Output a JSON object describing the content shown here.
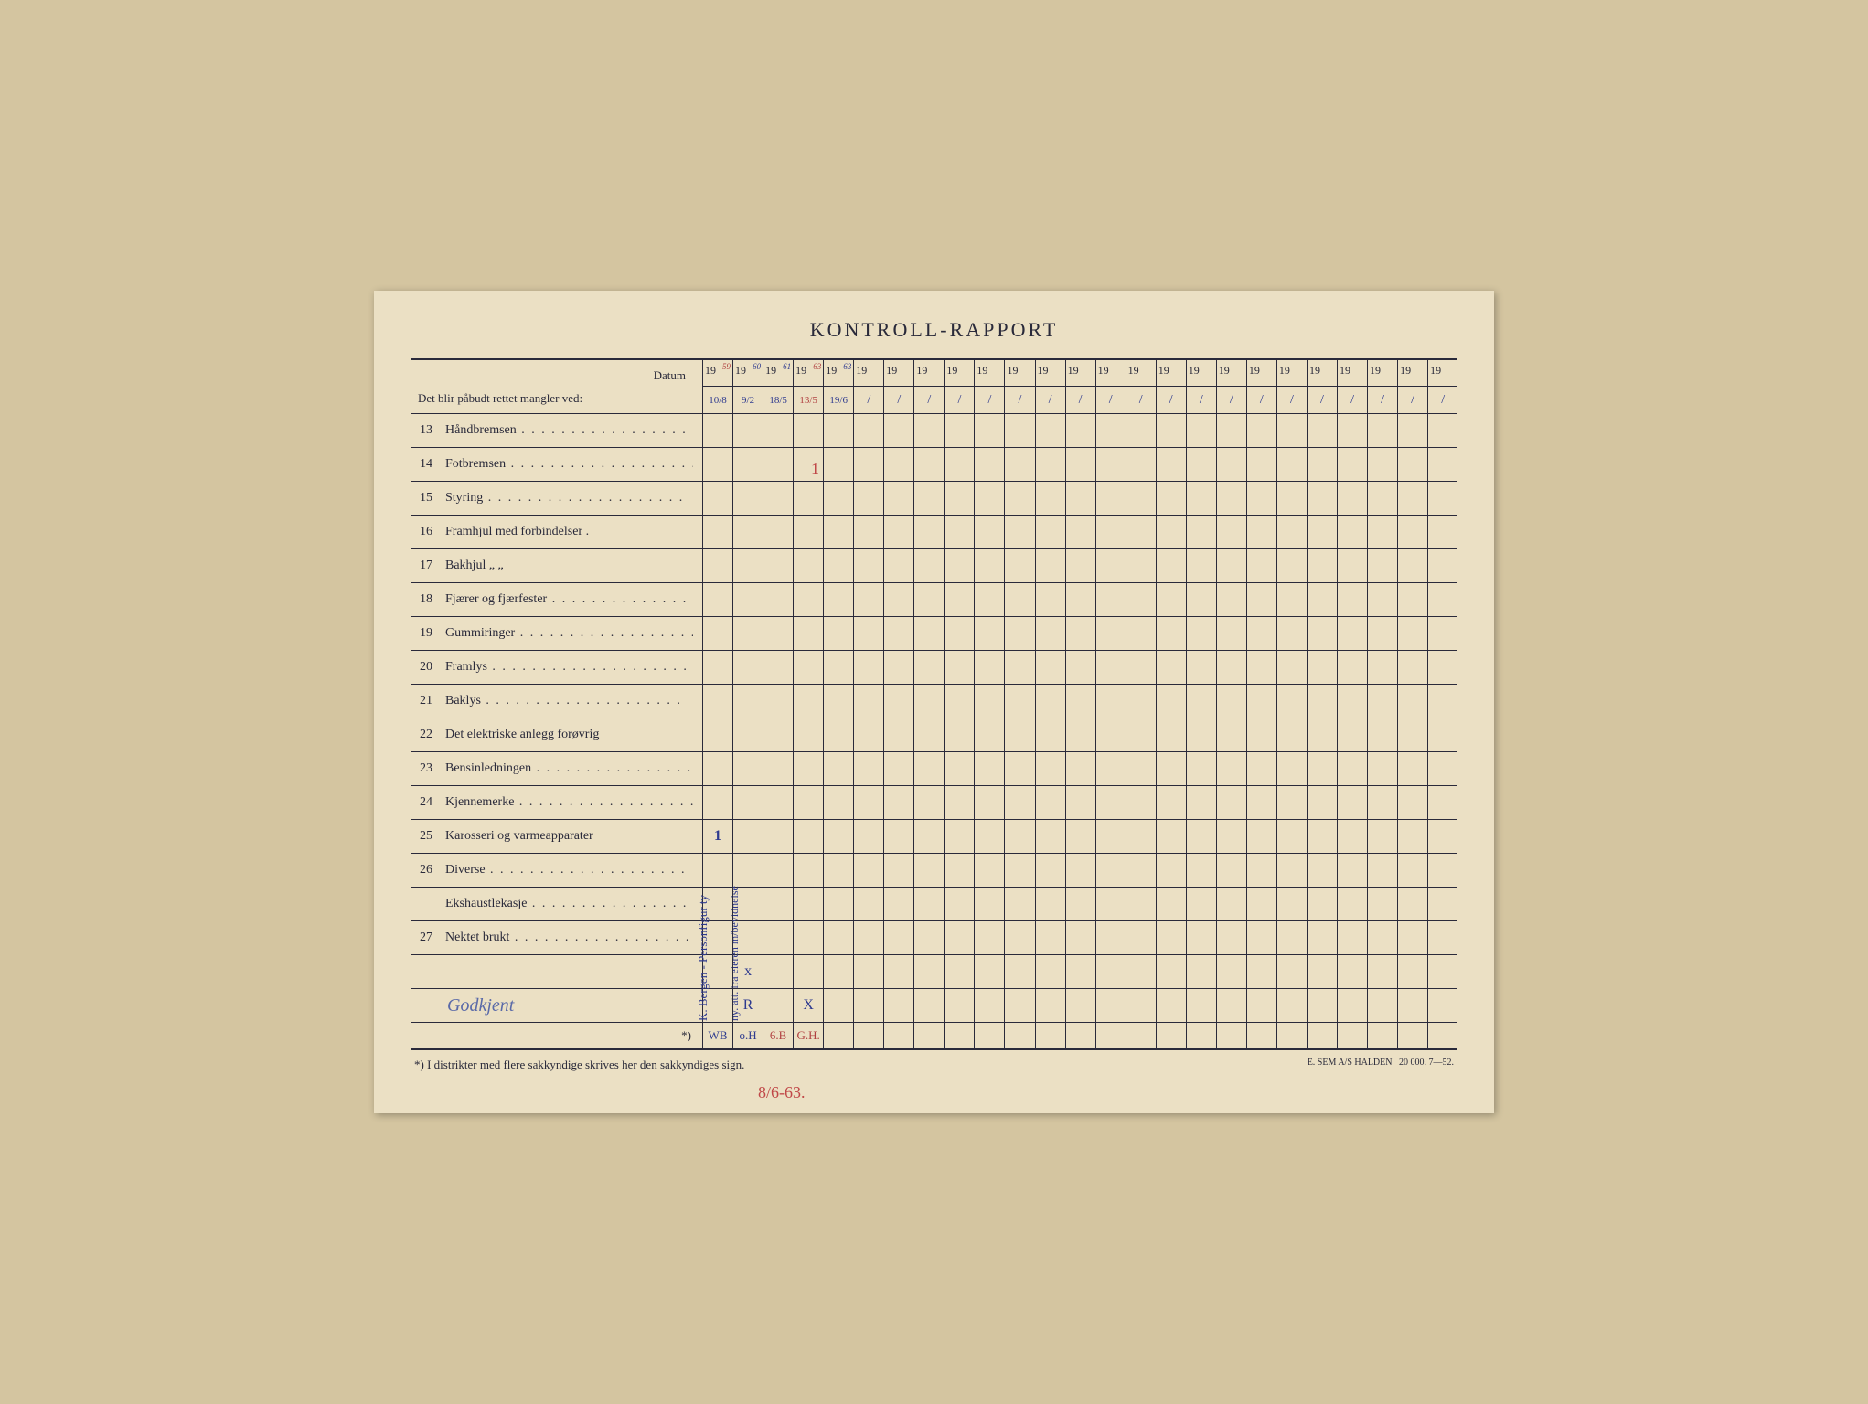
{
  "title": "KONTROLL-RAPPORT",
  "header": {
    "datum_label": "Datum",
    "subtitle": "Det blir påbudt rettet mangler ved:"
  },
  "year_columns": [
    {
      "prefix": "19",
      "suffix_hand": "59",
      "suffix_color": "red",
      "bottom": "10/8",
      "bottom_color": "blue"
    },
    {
      "prefix": "19",
      "suffix_hand": "60",
      "suffix_color": "blue",
      "bottom": "9/2",
      "bottom_color": "blue"
    },
    {
      "prefix": "19",
      "suffix_hand": "61",
      "suffix_color": "blue",
      "bottom": "18/5",
      "bottom_color": "blue"
    },
    {
      "prefix": "19",
      "suffix_hand": "63",
      "suffix_color": "red",
      "bottom": "13/5",
      "bottom_color": "red"
    },
    {
      "prefix": "19",
      "suffix_hand": "63",
      "suffix_color": "blue",
      "bottom": "19/6",
      "bottom_color": "blue"
    },
    {
      "prefix": "19",
      "suffix_hand": "",
      "bottom": "/",
      "bottom_color": "blue"
    },
    {
      "prefix": "19",
      "suffix_hand": "",
      "bottom": "/",
      "bottom_color": "blue"
    },
    {
      "prefix": "19",
      "suffix_hand": "",
      "bottom": "/",
      "bottom_color": "blue"
    },
    {
      "prefix": "19",
      "suffix_hand": "",
      "bottom": "/",
      "bottom_color": "blue"
    },
    {
      "prefix": "19",
      "suffix_hand": "",
      "bottom": "/",
      "bottom_color": "blue"
    },
    {
      "prefix": "19",
      "suffix_hand": "",
      "bottom": "/",
      "bottom_color": "blue"
    },
    {
      "prefix": "19",
      "suffix_hand": "",
      "bottom": "/",
      "bottom_color": "blue"
    },
    {
      "prefix": "19",
      "suffix_hand": "",
      "bottom": "/",
      "bottom_color": "blue"
    },
    {
      "prefix": "19",
      "suffix_hand": "",
      "bottom": "/",
      "bottom_color": "blue"
    },
    {
      "prefix": "19",
      "suffix_hand": "",
      "bottom": "/",
      "bottom_color": "blue"
    },
    {
      "prefix": "19",
      "suffix_hand": "",
      "bottom": "/",
      "bottom_color": "blue"
    },
    {
      "prefix": "19",
      "suffix_hand": "",
      "bottom": "/",
      "bottom_color": "blue"
    },
    {
      "prefix": "19",
      "suffix_hand": "",
      "bottom": "/",
      "bottom_color": "blue"
    },
    {
      "prefix": "19",
      "suffix_hand": "",
      "bottom": "/",
      "bottom_color": "blue"
    },
    {
      "prefix": "19",
      "suffix_hand": "",
      "bottom": "/",
      "bottom_color": "blue"
    },
    {
      "prefix": "19",
      "suffix_hand": "",
      "bottom": "/",
      "bottom_color": "blue"
    },
    {
      "prefix": "19",
      "suffix_hand": "",
      "bottom": "/",
      "bottom_color": "blue"
    },
    {
      "prefix": "19",
      "suffix_hand": "",
      "bottom": "/",
      "bottom_color": "blue"
    },
    {
      "prefix": "19",
      "suffix_hand": "",
      "bottom": "/",
      "bottom_color": "blue"
    },
    {
      "prefix": "19",
      "suffix_hand": "",
      "bottom": "/",
      "bottom_color": "blue"
    }
  ],
  "items": [
    {
      "num": "13",
      "label": "Håndbremsen",
      "dots": true
    },
    {
      "num": "14",
      "label": "Fotbremsen",
      "dots": true
    },
    {
      "num": "15",
      "label": "Styring",
      "dots": true
    },
    {
      "num": "16",
      "label": "Framhjul med forbindelser .",
      "dots": false
    },
    {
      "num": "17",
      "label": "Bakhjul        „            „",
      "dots": false
    },
    {
      "num": "18",
      "label": "Fjærer og fjærfester",
      "dots": true
    },
    {
      "num": "19",
      "label": "Gummiringer",
      "dots": true
    },
    {
      "num": "20",
      "label": "Framlys",
      "dots": true
    },
    {
      "num": "21",
      "label": "Baklys",
      "dots": true
    },
    {
      "num": "22",
      "label": "Det elektriske anlegg forøvrig",
      "dots": false
    },
    {
      "num": "23",
      "label": "Bensinledningen",
      "dots": true
    },
    {
      "num": "24",
      "label": "Kjennemerke",
      "dots": true
    },
    {
      "num": "25",
      "label": "Karosseri og varmeapparater",
      "dots": false
    },
    {
      "num": "26",
      "label": "Diverse",
      "dots": true
    },
    {
      "num": "",
      "label": "Ekshaustlekasje",
      "dots": true
    },
    {
      "num": "27",
      "label": "Nektet brukt",
      "dots": true
    }
  ],
  "signature_text": "Godkjent",
  "asterisk_label": "*)",
  "footnote": "*)  I distrikter med flere sakkyndige skrives her den sakkyndiges sign.",
  "printer_info": "E. SEM A/S\nHALDEN",
  "print_run": "20 000.   7—52.",
  "bottom_date": "8/6-63.",
  "vertical_note1": "K. Bergen - Personfigur ty",
  "vertical_note2": "ny. att.  fra eieren m/bevidnelse",
  "marks": {
    "row25_col0": "1",
    "blank_col1_x": "x",
    "sig_col1_r": "R",
    "sig_col3_x": "X",
    "initials": [
      "WB",
      "o.H",
      "6.B",
      "G.H."
    ]
  },
  "red_one_mark": "1",
  "colors": {
    "paper": "#ebe0c4",
    "ink": "#2a2a3a",
    "blue_pen": "#2e3a8f",
    "red_pen": "#b04040"
  }
}
